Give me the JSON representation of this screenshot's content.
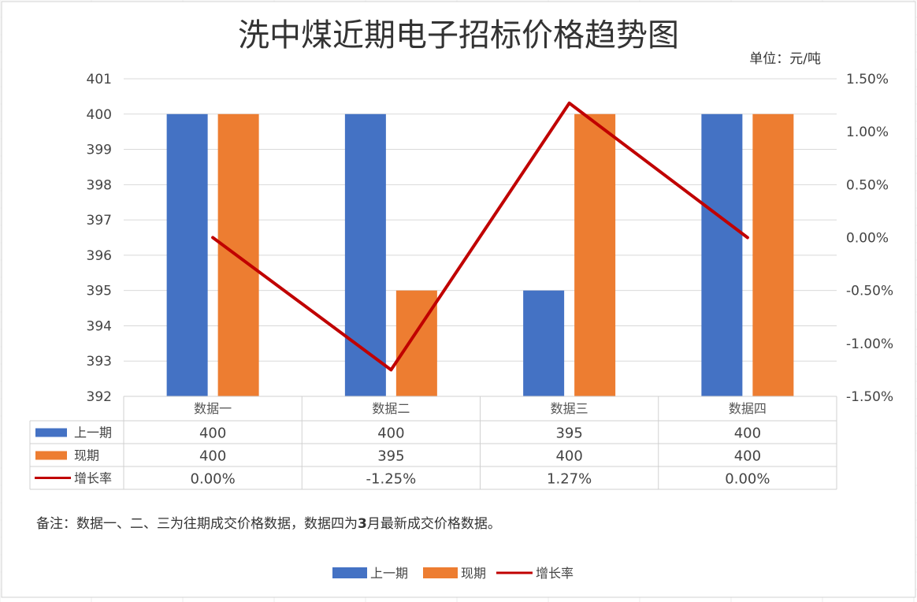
{
  "chart_data": {
    "type": "bar",
    "title": "洗中煤近期电子招标价格趋势图",
    "unit_label": "单位：元/吨",
    "categories": [
      "数据一",
      "数据二",
      "数据三",
      "数据四"
    ],
    "series": [
      {
        "name": "上一期",
        "type": "bar",
        "axis": "left",
        "color": "#4472C4",
        "values": [
          400,
          400,
          395,
          400
        ],
        "display": [
          "400",
          "400",
          "395",
          "400"
        ]
      },
      {
        "name": "现期",
        "type": "bar",
        "axis": "left",
        "color": "#ED7D31",
        "values": [
          400,
          395,
          400,
          400
        ],
        "display": [
          "400",
          "395",
          "400",
          "400"
        ]
      },
      {
        "name": "增长率",
        "type": "line",
        "axis": "right",
        "color": "#C00000",
        "values": [
          0.0,
          -1.25,
          1.27,
          0.0
        ],
        "display": [
          "0.00%",
          "-1.25%",
          "1.27%",
          "0.00%"
        ]
      }
    ],
    "y_left": {
      "min": 392,
      "max": 401,
      "ticks": [
        "392",
        "393",
        "394",
        "395",
        "396",
        "397",
        "398",
        "399",
        "400",
        "401"
      ]
    },
    "y_right": {
      "min": -1.5,
      "max": 1.5,
      "ticks": [
        "-1.50%",
        "-1.00%",
        "-0.50%",
        "0.00%",
        "0.50%",
        "1.00%",
        "1.50%"
      ]
    },
    "grid": true,
    "data_table": true,
    "legend_position": "bottom",
    "note": {
      "before": "备注：数据一、二、三为往期成交价格数据，数据四为",
      "strong": "3",
      "after": "月最新成交价格数据。"
    }
  }
}
